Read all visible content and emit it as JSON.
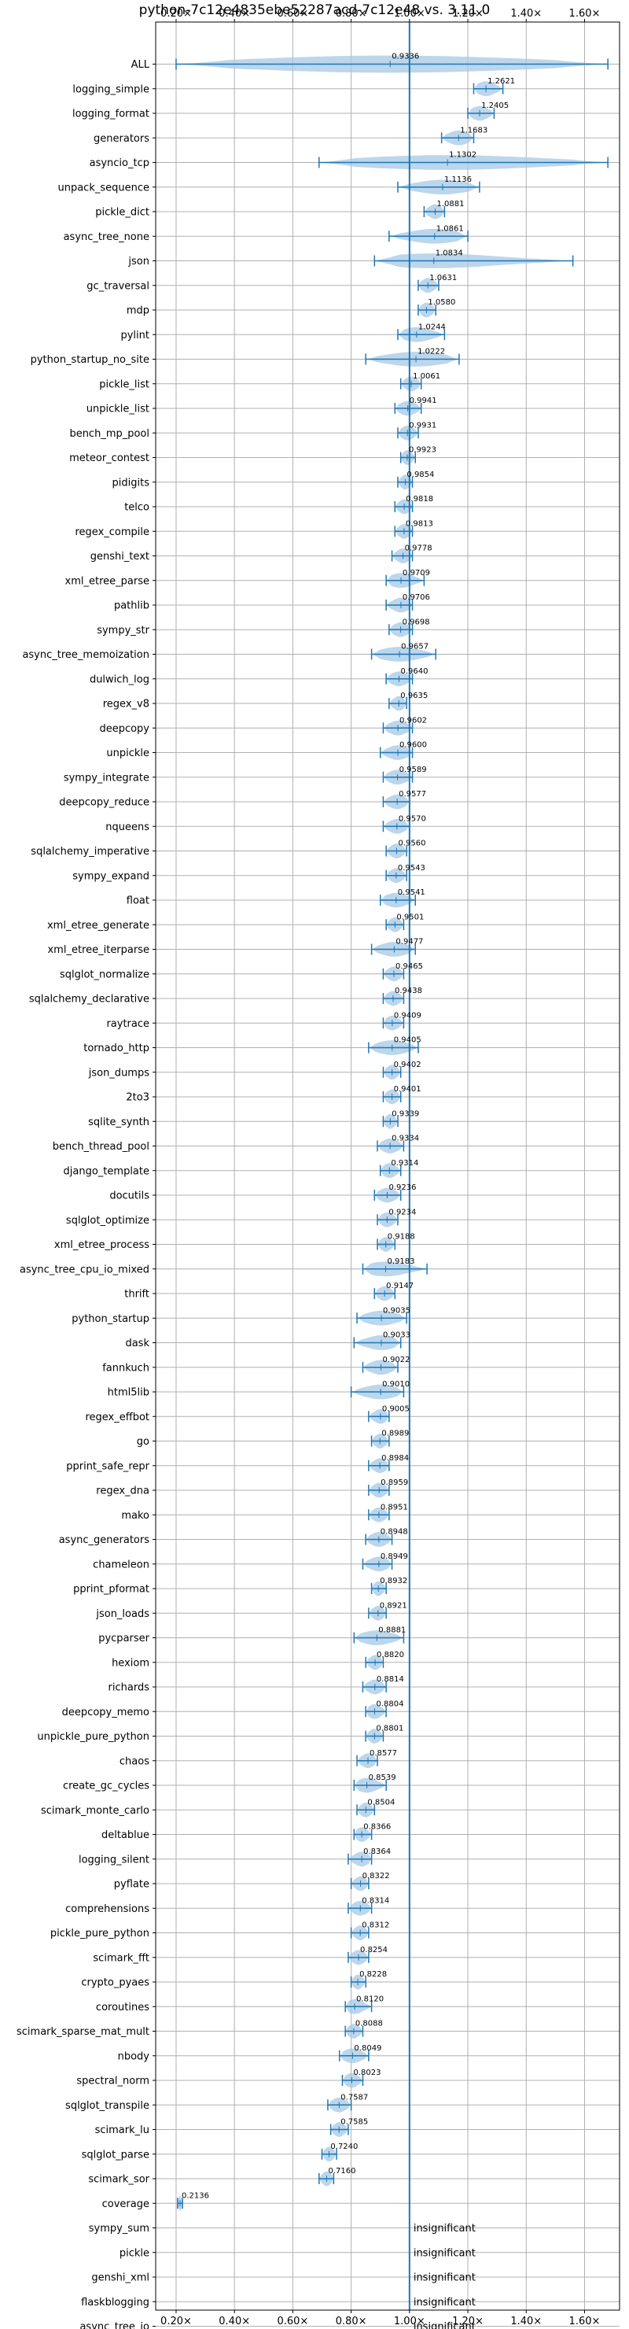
{
  "chart_data": {
    "type": "violin",
    "title": "python-7c12e4835ebe52287acd-7c12e48 vs. 3.11.0",
    "x_ticks": [
      0.2,
      0.4,
      0.6,
      0.8,
      1.0,
      1.2,
      1.4,
      1.6
    ],
    "x_tick_labels": [
      "0.20×",
      "0.40×",
      "0.60×",
      "0.80×",
      "1.00×",
      "1.20×",
      "1.40×",
      "1.60×"
    ],
    "xlim": [
      0.13,
      1.72
    ],
    "reference_line": 1.0,
    "grid": true,
    "color": "#1f77b4",
    "fill_color": "#a6c8e6",
    "insignificant_text": "insignificant",
    "benchmarks": [
      {
        "name": "ALL",
        "label": "0.9336",
        "mean": 0.9336,
        "min": 0.2,
        "max": 1.68,
        "width": 0.7
      },
      {
        "name": "logging_simple",
        "label": "1.2621",
        "mean": 1.2621,
        "min": 1.22,
        "max": 1.32,
        "width": 0.6
      },
      {
        "name": "logging_format",
        "label": "1.2405",
        "mean": 1.2405,
        "min": 1.2,
        "max": 1.29,
        "width": 0.6
      },
      {
        "name": "generators",
        "label": "1.1683",
        "mean": 1.1683,
        "min": 1.11,
        "max": 1.22,
        "width": 0.6
      },
      {
        "name": "asyncio_tcp",
        "label": "1.1302",
        "mean": 1.1302,
        "min": 0.69,
        "max": 1.68,
        "width": 0.6
      },
      {
        "name": "unpack_sequence",
        "label": "1.1136",
        "mean": 1.1136,
        "min": 0.96,
        "max": 1.24,
        "width": 0.6
      },
      {
        "name": "pickle_dict",
        "label": "1.0881",
        "mean": 1.0881,
        "min": 1.05,
        "max": 1.12,
        "width": 0.6
      },
      {
        "name": "async_tree_none",
        "label": "1.0861",
        "mean": 1.0861,
        "min": 0.93,
        "max": 1.2,
        "width": 0.6
      },
      {
        "name": "json",
        "label": "1.0834",
        "mean": 1.0834,
        "min": 0.88,
        "max": 1.56,
        "width": 0.6
      },
      {
        "name": "gc_traversal",
        "label": "1.0631",
        "mean": 1.0631,
        "min": 1.03,
        "max": 1.1,
        "width": 0.6
      },
      {
        "name": "mdp",
        "label": "1.0580",
        "mean": 1.058,
        "min": 1.03,
        "max": 1.09,
        "width": 0.6
      },
      {
        "name": "pylint",
        "label": "1.0244",
        "mean": 1.0244,
        "min": 0.96,
        "max": 1.12,
        "width": 0.6
      },
      {
        "name": "python_startup_no_site",
        "label": "1.0222",
        "mean": 1.0222,
        "min": 0.85,
        "max": 1.17,
        "width": 0.6
      },
      {
        "name": "pickle_list",
        "label": "1.0061",
        "mean": 1.0061,
        "min": 0.97,
        "max": 1.04,
        "width": 0.6
      },
      {
        "name": "unpickle_list",
        "label": "0.9941",
        "mean": 0.9941,
        "min": 0.95,
        "max": 1.04,
        "width": 0.6
      },
      {
        "name": "bench_mp_pool",
        "label": "0.9931",
        "mean": 0.9931,
        "min": 0.96,
        "max": 1.03,
        "width": 0.6
      },
      {
        "name": "meteor_contest",
        "label": "0.9923",
        "mean": 0.9923,
        "min": 0.97,
        "max": 1.02,
        "width": 0.6
      },
      {
        "name": "pidigits",
        "label": "0.9854",
        "mean": 0.9854,
        "min": 0.96,
        "max": 1.01,
        "width": 0.6
      },
      {
        "name": "telco",
        "label": "0.9818",
        "mean": 0.9818,
        "min": 0.95,
        "max": 1.01,
        "width": 0.6
      },
      {
        "name": "regex_compile",
        "label": "0.9813",
        "mean": 0.9813,
        "min": 0.95,
        "max": 1.01,
        "width": 0.6
      },
      {
        "name": "genshi_text",
        "label": "0.9778",
        "mean": 0.9778,
        "min": 0.94,
        "max": 1.01,
        "width": 0.6
      },
      {
        "name": "xml_etree_parse",
        "label": "0.9709",
        "mean": 0.9709,
        "min": 0.92,
        "max": 1.05,
        "width": 0.6
      },
      {
        "name": "pathlib",
        "label": "0.9706",
        "mean": 0.9706,
        "min": 0.92,
        "max": 1.01,
        "width": 0.6
      },
      {
        "name": "sympy_str",
        "label": "0.9698",
        "mean": 0.9698,
        "min": 0.93,
        "max": 1.01,
        "width": 0.6
      },
      {
        "name": "async_tree_memoization",
        "label": "0.9657",
        "mean": 0.9657,
        "min": 0.87,
        "max": 1.09,
        "width": 0.6
      },
      {
        "name": "dulwich_log",
        "label": "0.9640",
        "mean": 0.964,
        "min": 0.92,
        "max": 1.01,
        "width": 0.6
      },
      {
        "name": "regex_v8",
        "label": "0.9635",
        "mean": 0.9635,
        "min": 0.93,
        "max": 0.99,
        "width": 0.6
      },
      {
        "name": "deepcopy",
        "label": "0.9602",
        "mean": 0.9602,
        "min": 0.91,
        "max": 1.01,
        "width": 0.6
      },
      {
        "name": "unpickle",
        "label": "0.9600",
        "mean": 0.96,
        "min": 0.9,
        "max": 1.01,
        "width": 0.6
      },
      {
        "name": "sympy_integrate",
        "label": "0.9589",
        "mean": 0.9589,
        "min": 0.91,
        "max": 1.01,
        "width": 0.6
      },
      {
        "name": "deepcopy_reduce",
        "label": "0.9577",
        "mean": 0.9577,
        "min": 0.91,
        "max": 1.0,
        "width": 0.6
      },
      {
        "name": "nqueens",
        "label": "0.9570",
        "mean": 0.957,
        "min": 0.91,
        "max": 1.0,
        "width": 0.6
      },
      {
        "name": "sqlalchemy_imperative",
        "label": "0.9560",
        "mean": 0.956,
        "min": 0.92,
        "max": 0.99,
        "width": 0.6
      },
      {
        "name": "sympy_expand",
        "label": "0.9543",
        "mean": 0.9543,
        "min": 0.92,
        "max": 0.99,
        "width": 0.6
      },
      {
        "name": "float",
        "label": "0.9541",
        "mean": 0.9541,
        "min": 0.9,
        "max": 1.02,
        "width": 0.6
      },
      {
        "name": "xml_etree_generate",
        "label": "0.9501",
        "mean": 0.9501,
        "min": 0.92,
        "max": 0.98,
        "width": 0.6
      },
      {
        "name": "xml_etree_iterparse",
        "label": "0.9477",
        "mean": 0.9477,
        "min": 0.87,
        "max": 1.02,
        "width": 0.6
      },
      {
        "name": "sqlglot_normalize",
        "label": "0.9465",
        "mean": 0.9465,
        "min": 0.91,
        "max": 0.98,
        "width": 0.6
      },
      {
        "name": "sqlalchemy_declarative",
        "label": "0.9438",
        "mean": 0.9438,
        "min": 0.91,
        "max": 0.98,
        "width": 0.6
      },
      {
        "name": "raytrace",
        "label": "0.9409",
        "mean": 0.9409,
        "min": 0.91,
        "max": 0.98,
        "width": 0.6
      },
      {
        "name": "tornado_http",
        "label": "0.9405",
        "mean": 0.9405,
        "min": 0.86,
        "max": 1.03,
        "width": 0.6
      },
      {
        "name": "json_dumps",
        "label": "0.9402",
        "mean": 0.9402,
        "min": 0.91,
        "max": 0.97,
        "width": 0.6
      },
      {
        "name": "2to3",
        "label": "0.9401",
        "mean": 0.9401,
        "min": 0.91,
        "max": 0.97,
        "width": 0.6
      },
      {
        "name": "sqlite_synth",
        "label": "0.9339",
        "mean": 0.9339,
        "min": 0.91,
        "max": 0.96,
        "width": 0.6
      },
      {
        "name": "bench_thread_pool",
        "label": "0.9334",
        "mean": 0.9334,
        "min": 0.89,
        "max": 0.98,
        "width": 0.6
      },
      {
        "name": "django_template",
        "label": "0.9314",
        "mean": 0.9314,
        "min": 0.9,
        "max": 0.97,
        "width": 0.6
      },
      {
        "name": "docutils",
        "label": "0.9236",
        "mean": 0.9236,
        "min": 0.88,
        "max": 0.97,
        "width": 0.6
      },
      {
        "name": "sqlglot_optimize",
        "label": "0.9234",
        "mean": 0.9234,
        "min": 0.89,
        "max": 0.96,
        "width": 0.6
      },
      {
        "name": "xml_etree_process",
        "label": "0.9188",
        "mean": 0.9188,
        "min": 0.89,
        "max": 0.95,
        "width": 0.6
      },
      {
        "name": "async_tree_cpu_io_mixed",
        "label": "0.9183",
        "mean": 0.9183,
        "min": 0.84,
        "max": 1.06,
        "width": 0.6
      },
      {
        "name": "thrift",
        "label": "0.9147",
        "mean": 0.9147,
        "min": 0.88,
        "max": 0.95,
        "width": 0.6
      },
      {
        "name": "python_startup",
        "label": "0.9035",
        "mean": 0.9035,
        "min": 0.82,
        "max": 0.99,
        "width": 0.6
      },
      {
        "name": "dask",
        "label": "0.9033",
        "mean": 0.9033,
        "min": 0.81,
        "max": 0.97,
        "width": 0.6
      },
      {
        "name": "fannkuch",
        "label": "0.9022",
        "mean": 0.9022,
        "min": 0.84,
        "max": 0.96,
        "width": 0.6
      },
      {
        "name": "html5lib",
        "label": "0.9010",
        "mean": 0.901,
        "min": 0.8,
        "max": 0.98,
        "width": 0.6
      },
      {
        "name": "regex_effbot",
        "label": "0.9005",
        "mean": 0.9005,
        "min": 0.86,
        "max": 0.93,
        "width": 0.6
      },
      {
        "name": "go",
        "label": "0.8989",
        "mean": 0.8989,
        "min": 0.87,
        "max": 0.93,
        "width": 0.6
      },
      {
        "name": "pprint_safe_repr",
        "label": "0.8984",
        "mean": 0.8984,
        "min": 0.86,
        "max": 0.93,
        "width": 0.6
      },
      {
        "name": "regex_dna",
        "label": "0.8959",
        "mean": 0.8959,
        "min": 0.86,
        "max": 0.93,
        "width": 0.6
      },
      {
        "name": "mako",
        "label": "0.8951",
        "mean": 0.8951,
        "min": 0.86,
        "max": 0.93,
        "width": 0.6
      },
      {
        "name": "async_generators",
        "label": "0.8948",
        "mean": 0.8948,
        "min": 0.85,
        "max": 0.94,
        "width": 0.6
      },
      {
        "name": "chameleon",
        "label": "0.8949",
        "mean": 0.8949,
        "min": 0.84,
        "max": 0.94,
        "width": 0.6
      },
      {
        "name": "pprint_pformat",
        "label": "0.8932",
        "mean": 0.8932,
        "min": 0.87,
        "max": 0.92,
        "width": 0.6
      },
      {
        "name": "json_loads",
        "label": "0.8921",
        "mean": 0.8921,
        "min": 0.86,
        "max": 0.92,
        "width": 0.6
      },
      {
        "name": "pycparser",
        "label": "0.8881",
        "mean": 0.8881,
        "min": 0.81,
        "max": 0.98,
        "width": 0.6
      },
      {
        "name": "hexiom",
        "label": "0.8820",
        "mean": 0.882,
        "min": 0.85,
        "max": 0.91,
        "width": 0.6
      },
      {
        "name": "richards",
        "label": "0.8814",
        "mean": 0.8814,
        "min": 0.84,
        "max": 0.92,
        "width": 0.6
      },
      {
        "name": "deepcopy_memo",
        "label": "0.8804",
        "mean": 0.8804,
        "min": 0.85,
        "max": 0.92,
        "width": 0.6
      },
      {
        "name": "unpickle_pure_python",
        "label": "0.8801",
        "mean": 0.8801,
        "min": 0.85,
        "max": 0.91,
        "width": 0.6
      },
      {
        "name": "chaos",
        "label": "0.8577",
        "mean": 0.8577,
        "min": 0.82,
        "max": 0.89,
        "width": 0.6
      },
      {
        "name": "create_gc_cycles",
        "label": "0.8539",
        "mean": 0.8539,
        "min": 0.81,
        "max": 0.92,
        "width": 0.6
      },
      {
        "name": "scimark_monte_carlo",
        "label": "0.8504",
        "mean": 0.8504,
        "min": 0.82,
        "max": 0.88,
        "width": 0.6
      },
      {
        "name": "deltablue",
        "label": "0.8366",
        "mean": 0.8366,
        "min": 0.81,
        "max": 0.87,
        "width": 0.6
      },
      {
        "name": "logging_silent",
        "label": "0.8364",
        "mean": 0.8364,
        "min": 0.79,
        "max": 0.87,
        "width": 0.6
      },
      {
        "name": "pyflate",
        "label": "0.8322",
        "mean": 0.8322,
        "min": 0.8,
        "max": 0.86,
        "width": 0.6
      },
      {
        "name": "comprehensions",
        "label": "0.8314",
        "mean": 0.8314,
        "min": 0.79,
        "max": 0.87,
        "width": 0.6
      },
      {
        "name": "pickle_pure_python",
        "label": "0.8312",
        "mean": 0.8312,
        "min": 0.8,
        "max": 0.86,
        "width": 0.6
      },
      {
        "name": "scimark_fft",
        "label": "0.8254",
        "mean": 0.8254,
        "min": 0.79,
        "max": 0.86,
        "width": 0.6
      },
      {
        "name": "crypto_pyaes",
        "label": "0.8228",
        "mean": 0.8228,
        "min": 0.8,
        "max": 0.85,
        "width": 0.6
      },
      {
        "name": "coroutines",
        "label": "0.8120",
        "mean": 0.812,
        "min": 0.78,
        "max": 0.87,
        "width": 0.6
      },
      {
        "name": "scimark_sparse_mat_mult",
        "label": "0.8088",
        "mean": 0.8088,
        "min": 0.78,
        "max": 0.84,
        "width": 0.6
      },
      {
        "name": "nbody",
        "label": "0.8049",
        "mean": 0.8049,
        "min": 0.76,
        "max": 0.86,
        "width": 0.6
      },
      {
        "name": "spectral_norm",
        "label": "0.8023",
        "mean": 0.8023,
        "min": 0.77,
        "max": 0.84,
        "width": 0.6
      },
      {
        "name": "sqlglot_transpile",
        "label": "0.7587",
        "mean": 0.7587,
        "min": 0.72,
        "max": 0.8,
        "width": 0.6
      },
      {
        "name": "scimark_lu",
        "label": "0.7585",
        "mean": 0.7585,
        "min": 0.73,
        "max": 0.79,
        "width": 0.6
      },
      {
        "name": "sqlglot_parse",
        "label": "0.7240",
        "mean": 0.724,
        "min": 0.7,
        "max": 0.75,
        "width": 0.6
      },
      {
        "name": "scimark_sor",
        "label": "0.7160",
        "mean": 0.716,
        "min": 0.69,
        "max": 0.74,
        "width": 0.6
      },
      {
        "name": "coverage",
        "label": "0.2136",
        "mean": 0.2136,
        "min": 0.205,
        "max": 0.222,
        "width": 0.6
      },
      {
        "name": "sympy_sum",
        "insignificant": true
      },
      {
        "name": "pickle",
        "insignificant": true
      },
      {
        "name": "genshi_xml",
        "insignificant": true
      },
      {
        "name": "flaskblogging",
        "insignificant": true
      },
      {
        "name": "async_tree_io",
        "insignificant": true
      }
    ]
  }
}
